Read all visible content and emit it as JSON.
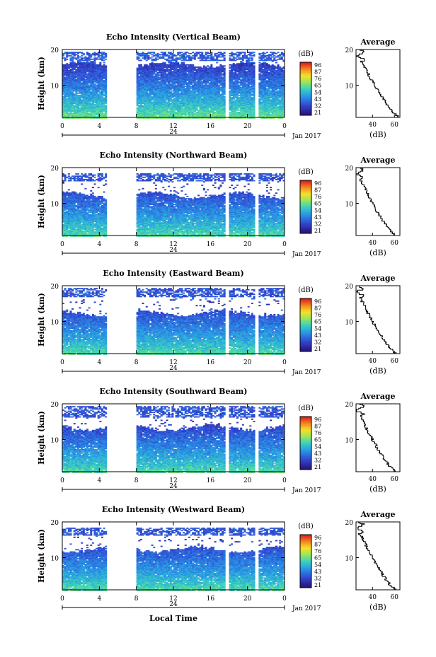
{
  "chart_data": [
    {
      "type": "heatmap",
      "title": "Echo Intensity (Vertical Beam)",
      "ylabel": "Height (km)",
      "yticks": [
        "20",
        "10"
      ],
      "xticks": [
        "0",
        "4",
        "8",
        "12",
        "16",
        "20",
        "0"
      ],
      "date_mid": "24",
      "date_right": "Jan 2017",
      "cbar_title": "(dB)",
      "cbar_ticks": [
        "96",
        "87",
        "76",
        "65",
        "54",
        "43",
        "32",
        "21"
      ],
      "avg_title": "Average",
      "avg_yticks": [
        "20",
        "10"
      ],
      "avg_xticks": [
        "40",
        "60"
      ],
      "avg_xlabel": "(dB)",
      "avg_xlim": [
        25,
        65
      ],
      "ylim": [
        1,
        20
      ],
      "gaps": [
        [
          4.7,
          8.0
        ],
        [
          17.6,
          18.0
        ],
        [
          20.8,
          21.1
        ]
      ],
      "top_km": 16.0,
      "upper_band": [
        17,
        19.5
      ],
      "peak_db": 65,
      "low_db": 25
    },
    {
      "type": "heatmap",
      "title": "Echo Intensity (Northward Beam)",
      "ylabel": "Height (km)",
      "yticks": [
        "20",
        "10"
      ],
      "xticks": [
        "0",
        "4",
        "8",
        "12",
        "16",
        "20",
        "0"
      ],
      "date_mid": "24",
      "date_right": "Jan 2017",
      "cbar_title": "(dB)",
      "cbar_ticks": [
        "96",
        "87",
        "76",
        "65",
        "54",
        "43",
        "32",
        "21"
      ],
      "avg_title": "Average",
      "avg_yticks": [
        "20",
        "10"
      ],
      "avg_xticks": [
        "40",
        "60"
      ],
      "avg_xlabel": "(dB)",
      "avg_xlim": [
        25,
        65
      ],
      "ylim": [
        1,
        20
      ],
      "gaps": [
        [
          4.7,
          8.0
        ],
        [
          17.6,
          18.0
        ],
        [
          20.8,
          21.1
        ]
      ],
      "top_km": 12.5,
      "upper_band": [
        16.5,
        18.5
      ],
      "peak_db": 62,
      "low_db": 24
    },
    {
      "type": "heatmap",
      "title": "Echo Intensity (Eastward Beam)",
      "ylabel": "Height (km)",
      "yticks": [
        "20",
        "10"
      ],
      "xticks": [
        "0",
        "4",
        "8",
        "12",
        "16",
        "20",
        "0"
      ],
      "date_mid": "24",
      "date_right": "Jan 2017",
      "cbar_title": "(dB)",
      "cbar_ticks": [
        "96",
        "87",
        "76",
        "65",
        "54",
        "43",
        "32",
        "21"
      ],
      "avg_title": "Average",
      "avg_yticks": [
        "20",
        "10"
      ],
      "avg_xticks": [
        "40",
        "60"
      ],
      "avg_xlabel": "(dB)",
      "avg_xlim": [
        25,
        65
      ],
      "ylim": [
        1,
        20
      ],
      "gaps": [
        [
          4.7,
          8.0
        ],
        [
          17.6,
          18.0
        ],
        [
          20.8,
          21.1
        ]
      ],
      "top_km": 12.5,
      "upper_band": [
        17,
        19.5
      ],
      "peak_db": 62,
      "low_db": 24
    },
    {
      "type": "heatmap",
      "title": "Echo Intensity (Southward Beam)",
      "ylabel": "Height (km)",
      "yticks": [
        "20",
        "10"
      ],
      "xticks": [
        "0",
        "4",
        "8",
        "12",
        "16",
        "20",
        "0"
      ],
      "date_mid": "24",
      "date_right": "Jan 2017",
      "cbar_title": "(dB)",
      "cbar_ticks": [
        "96",
        "87",
        "76",
        "65",
        "54",
        "43",
        "32",
        "21"
      ],
      "avg_title": "Average",
      "avg_yticks": [
        "20",
        "10"
      ],
      "avg_xticks": [
        "40",
        "60"
      ],
      "avg_xlabel": "(dB)",
      "avg_xlim": [
        25,
        65
      ],
      "ylim": [
        1,
        20
      ],
      "gaps": [
        [
          4.7,
          8.0
        ],
        [
          17.6,
          18.0
        ],
        [
          20.8,
          21.1
        ]
      ],
      "top_km": 13.5,
      "upper_band": [
        16.5,
        19.5
      ],
      "peak_db": 62,
      "low_db": 24
    },
    {
      "type": "heatmap",
      "title": "Echo Intensity (Westward Beam)",
      "ylabel": "Height (km)",
      "yticks": [
        "20",
        "10"
      ],
      "xticks": [
        "0",
        "4",
        "8",
        "12",
        "16",
        "20",
        "0"
      ],
      "date_mid": "24",
      "date_right": "Jan 2017",
      "cbar_title": "(dB)",
      "cbar_ticks": [
        "96",
        "87",
        "76",
        "65",
        "54",
        "43",
        "32",
        "21"
      ],
      "avg_title": "Average",
      "avg_yticks": [
        "20",
        "10"
      ],
      "avg_xticks": [
        "40",
        "60"
      ],
      "avg_xlabel": "(dB)",
      "avg_xlim": [
        25,
        65
      ],
      "ylim": [
        1,
        20
      ],
      "gaps": [
        [
          4.7,
          8.0
        ],
        [
          17.6,
          18.0
        ],
        [
          20.8,
          21.1
        ]
      ],
      "top_km": 12.5,
      "upper_band": [
        16.5,
        18.5
      ],
      "peak_db": 62,
      "low_db": 24
    }
  ],
  "xlabel": "Local Time"
}
